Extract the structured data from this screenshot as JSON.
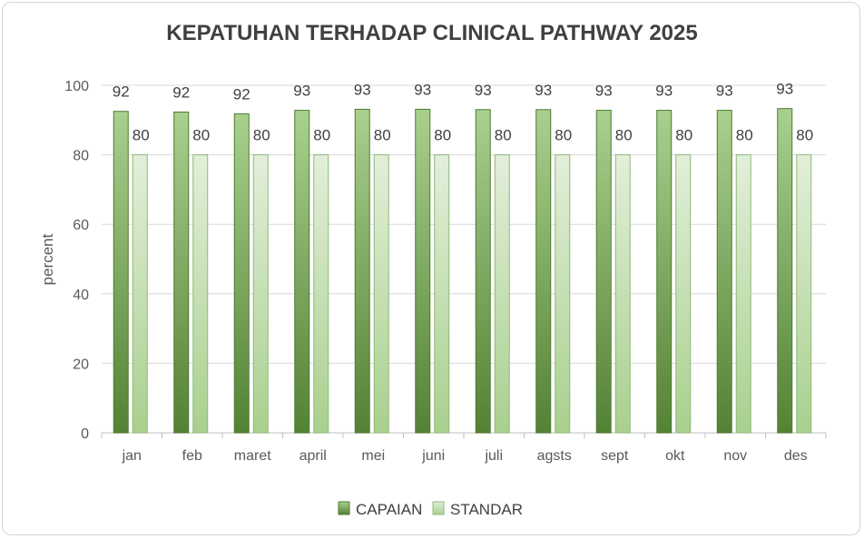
{
  "chart_data": {
    "type": "bar",
    "title": "KEPATUHAN TERHADAP CLINICAL PATHWAY 2025",
    "xlabel": "",
    "ylabel": "percent",
    "ylim": [
      0,
      100
    ],
    "yticks": [
      0,
      20,
      40,
      60,
      80,
      100
    ],
    "grid": true,
    "legend_position": "bottom",
    "categories": [
      "jan",
      "feb",
      "maret",
      "april",
      "mei",
      "juni",
      "juli",
      "agsts",
      "sept",
      "okt",
      "nov",
      "des"
    ],
    "series": [
      {
        "name": "CAPAIAN",
        "values": [
          92.5,
          92.3,
          91.8,
          92.8,
          93.1,
          93.1,
          93.0,
          93.0,
          92.8,
          92.8,
          92.8,
          93.3
        ],
        "labels": [
          "92",
          "92",
          "92",
          "93",
          "93",
          "93",
          "93",
          "93",
          "93",
          "93",
          "93",
          "93"
        ],
        "color_top": "#a9d08e",
        "color_bottom": "#548235",
        "border": "#4e7a2f"
      },
      {
        "name": "STANDAR",
        "values": [
          80,
          80,
          80,
          80,
          80,
          80,
          80,
          80,
          80,
          80,
          80,
          80
        ],
        "labels": [
          "80",
          "80",
          "80",
          "80",
          "80",
          "80",
          "80",
          "80",
          "80",
          "80",
          "80",
          "80"
        ],
        "color_top": "#e2efda",
        "color_bottom": "#a9d08e",
        "border": "#8fb879"
      }
    ]
  }
}
